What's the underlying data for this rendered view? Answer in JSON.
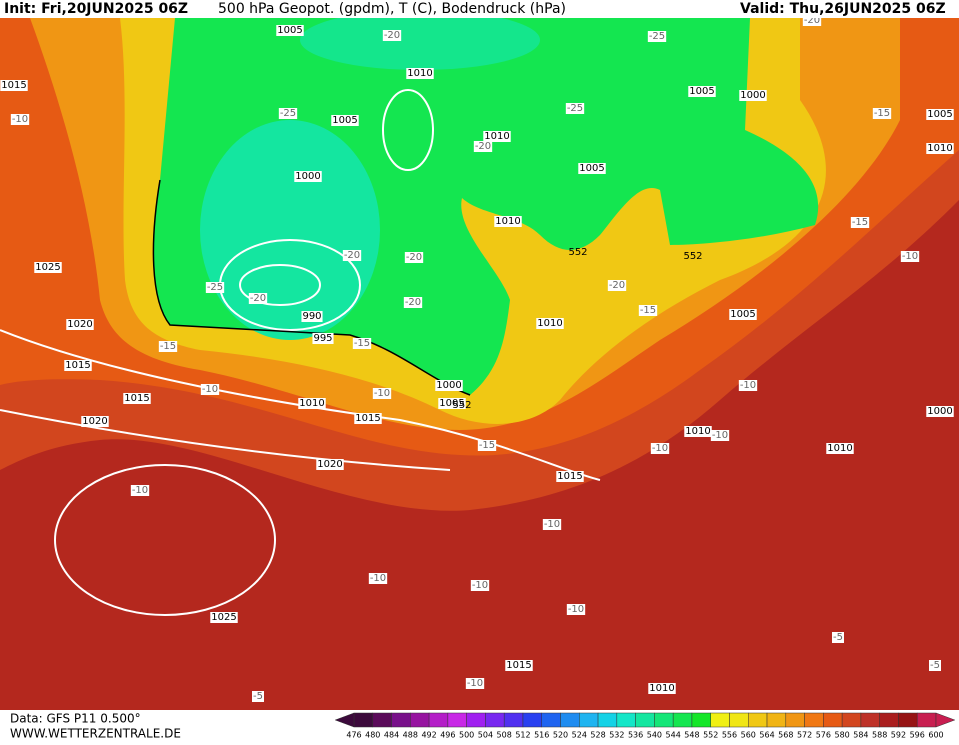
{
  "header": {
    "init": "Init: Fri,20JUN2025 06Z",
    "title": "500 hPa Geopot. (gpdm), T (C), Bodendruck (hPa)",
    "valid": "Valid: Thu,26JUN2025 06Z"
  },
  "footer": {
    "data_source": "Data: GFS P11 0.500°",
    "website": "WWW.WETTERZENTRALE.DE"
  },
  "map": {
    "isobar_labels": [
      "1005",
      "1010",
      "1005",
      "1000",
      "1010",
      "1005",
      "1000",
      "1005",
      "1010",
      "1025",
      "1020",
      "1015",
      "990",
      "995",
      "1010",
      "1005",
      "1000",
      "1005",
      "1015",
      "1010",
      "1015",
      "1020",
      "1020",
      "1015",
      "1010",
      "1010",
      "1000",
      "1025",
      "1015",
      "1010",
      "1015",
      "1010",
      "1005"
    ],
    "temperature_labels": [
      "-20",
      "-25",
      "-25",
      "-25",
      "-20",
      "-20",
      "-20",
      "-25",
      "-20",
      "-20",
      "-20",
      "-15",
      "-15",
      "-15",
      "-10",
      "-10",
      "-15",
      "-10",
      "-10",
      "-10",
      "-15",
      "-15",
      "-10",
      "-10",
      "-10",
      "-10",
      "-10",
      "-10",
      "-10",
      "-5",
      "-5",
      "-10",
      "-5",
      "-20"
    ],
    "geopotential_labels": [
      "552",
      "552",
      "552"
    ]
  },
  "colorbar": {
    "ticks": [
      476,
      480,
      484,
      488,
      492,
      496,
      500,
      504,
      508,
      512,
      516,
      520,
      524,
      528,
      532,
      536,
      540,
      544,
      548,
      552,
      556,
      560,
      564,
      568,
      572,
      576,
      580,
      584,
      588,
      592,
      596,
      600
    ],
    "colors": [
      "#3c0a3c",
      "#5a0a5a",
      "#78108a",
      "#9614a0",
      "#b41ec8",
      "#c828e6",
      "#a020f0",
      "#7828f0",
      "#5030f0",
      "#2840f0",
      "#1e64f0",
      "#1e8cf0",
      "#1eb4f0",
      "#14d2e6",
      "#14e6c8",
      "#14e6a0",
      "#14e678",
      "#14e650",
      "#14e628",
      "#f0f014",
      "#f0e614",
      "#f0c814",
      "#f0b414",
      "#f09614",
      "#f07814",
      "#e65a14",
      "#d2461e",
      "#be3228",
      "#aa1e1e",
      "#961414",
      "#c81e50"
    ]
  }
}
